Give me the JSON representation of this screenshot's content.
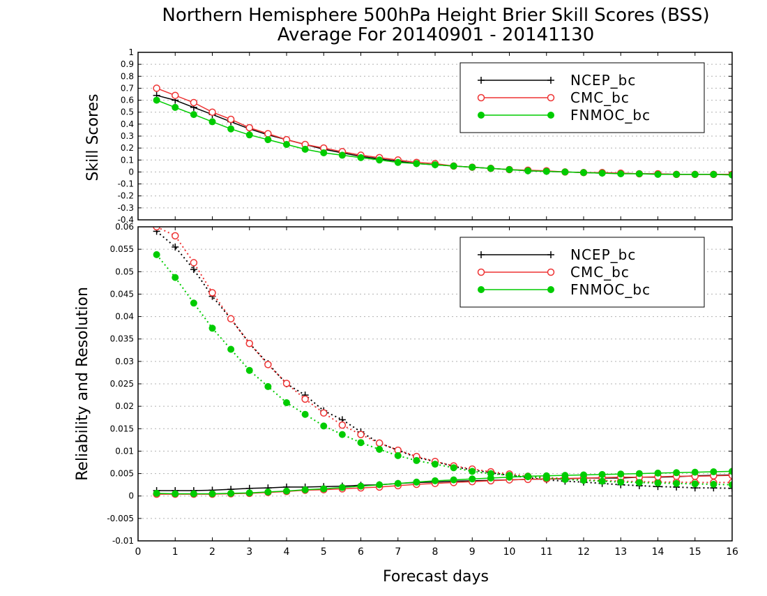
{
  "title_line1": "Northern Hemisphere 500hPa Height Brier Skill Scores (BSS)",
  "title_line2": "Average For 20140901 - 20141130",
  "chart_data": [
    {
      "type": "line",
      "ylabel": "Skill Scores",
      "ylim": [
        -0.4,
        1
      ],
      "xlim": [
        0,
        16
      ],
      "yticks": [
        "-0.4",
        "-0.3",
        "-0.2",
        "-0.1",
        "0",
        "0.1",
        "0.2",
        "0.3",
        "0.4",
        "0.5",
        "0.6",
        "0.7",
        "0.8",
        "0.9",
        "1"
      ],
      "grid": true,
      "legend_position": "top-right",
      "x": [
        0.5,
        1,
        1.5,
        2,
        2.5,
        3,
        3.5,
        4,
        4.5,
        5,
        5.5,
        6,
        6.5,
        7,
        7.5,
        8,
        8.5,
        9,
        9.5,
        10,
        10.5,
        11,
        11.5,
        12,
        12.5,
        13,
        13.5,
        14,
        14.5,
        15,
        15.5,
        16
      ],
      "series": [
        {
          "name": "NCEP_bc",
          "color": "#000000",
          "marker": "plus",
          "values": [
            0.64,
            0.6,
            0.54,
            0.48,
            0.42,
            0.36,
            0.31,
            0.27,
            0.23,
            0.19,
            0.16,
            0.13,
            0.11,
            0.09,
            0.07,
            0.06,
            0.05,
            0.04,
            0.03,
            0.02,
            0.01,
            0.005,
            0.0,
            -0.005,
            -0.01,
            -0.01,
            -0.015,
            -0.015,
            -0.02,
            -0.02,
            -0.02,
            -0.02
          ]
        },
        {
          "name": "CMC_bc",
          "color": "#ee3333",
          "marker": "open-circle",
          "values": [
            0.7,
            0.64,
            0.58,
            0.5,
            0.44,
            0.37,
            0.32,
            0.27,
            0.23,
            0.2,
            0.17,
            0.14,
            0.12,
            0.1,
            0.08,
            0.07,
            0.05,
            0.04,
            0.03,
            0.02,
            0.015,
            0.01,
            0.0,
            -0.005,
            -0.005,
            -0.01,
            -0.015,
            -0.015,
            -0.02,
            -0.02,
            -0.02,
            -0.02
          ]
        },
        {
          "name": "FNMOC_bc",
          "color": "#00cc00",
          "marker": "filled-circle",
          "values": [
            0.6,
            0.54,
            0.48,
            0.42,
            0.36,
            0.31,
            0.27,
            0.23,
            0.19,
            0.16,
            0.14,
            0.12,
            0.1,
            0.08,
            0.07,
            0.06,
            0.05,
            0.04,
            0.03,
            0.02,
            0.01,
            0.005,
            0.0,
            -0.005,
            -0.01,
            -0.015,
            -0.015,
            -0.02,
            -0.02,
            -0.02,
            -0.02,
            -0.025
          ]
        }
      ]
    },
    {
      "type": "line",
      "ylabel": "Reliability and Resolution",
      "xlabel": "Forecast days",
      "ylim": [
        -0.01,
        0.06
      ],
      "xlim": [
        0,
        16
      ],
      "yticks": [
        "-0.01",
        "-0.005",
        "0",
        "0.005",
        "0.01",
        "0.015",
        "0.02",
        "0.025",
        "0.03",
        "0.035",
        "0.04",
        "0.045",
        "0.05",
        "0.055",
        "0.06"
      ],
      "xticks": [
        "0",
        "1",
        "2",
        "3",
        "4",
        "5",
        "6",
        "7",
        "8",
        "9",
        "10",
        "11",
        "12",
        "13",
        "14",
        "15",
        "16"
      ],
      "grid": true,
      "legend_position": "top-right",
      "x": [
        0.5,
        1,
        1.5,
        2,
        2.5,
        3,
        3.5,
        4,
        4.5,
        5,
        5.5,
        6,
        6.5,
        7,
        7.5,
        8,
        8.5,
        9,
        9.5,
        10,
        10.5,
        11,
        11.5,
        12,
        12.5,
        13,
        13.5,
        14,
        14.5,
        15,
        15.5,
        16
      ],
      "series": [
        {
          "name": "NCEP_bc",
          "color": "#000000",
          "marker": "plus",
          "line": "dotted",
          "values": [
            0.059,
            0.0555,
            0.0505,
            0.0445,
            0.0395,
            0.034,
            0.0295,
            0.025,
            0.0225,
            0.019,
            0.017,
            0.0143,
            0.0118,
            0.0102,
            0.0086,
            0.0077,
            0.0066,
            0.0058,
            0.0052,
            0.0046,
            0.0041,
            0.0036,
            0.0033,
            0.0031,
            0.0028,
            0.0025,
            0.0023,
            0.0021,
            0.002,
            0.0018,
            0.0018,
            0.0017
          ]
        },
        {
          "name": "NCEP_bc",
          "color": "#000000",
          "marker": "plus",
          "line": "solid",
          "values": [
            0.0012,
            0.0012,
            0.0012,
            0.0013,
            0.0015,
            0.0017,
            0.0018,
            0.002,
            0.002,
            0.0021,
            0.0022,
            0.0024,
            0.0025,
            0.0028,
            0.003,
            0.0031,
            0.0033,
            0.0034,
            0.0035,
            0.0036,
            0.0037,
            0.0038,
            0.0038,
            0.004,
            0.004,
            0.004,
            0.0042,
            0.0042,
            0.0043,
            0.0045,
            0.0046,
            0.0047
          ]
        },
        {
          "name": "CMC_bc",
          "color": "#ee3333",
          "marker": "open-circle",
          "line": "dotted",
          "values": [
            0.06,
            0.058,
            0.052,
            0.0453,
            0.0395,
            0.034,
            0.0293,
            0.0251,
            0.0216,
            0.0185,
            0.0158,
            0.0137,
            0.0118,
            0.0102,
            0.0088,
            0.0077,
            0.0067,
            0.006,
            0.0054,
            0.0049,
            0.0044,
            0.0041,
            0.0039,
            0.0036,
            0.0035,
            0.0033,
            0.0032,
            0.0031,
            0.0031,
            0.003,
            0.003,
            0.003
          ]
        },
        {
          "name": "CMC_bc",
          "color": "#ee3333",
          "marker": "open-circle",
          "line": "solid",
          "values": [
            0.0004,
            0.0004,
            0.0004,
            0.0004,
            0.0005,
            0.0006,
            0.0008,
            0.001,
            0.0013,
            0.0014,
            0.0016,
            0.0018,
            0.002,
            0.0023,
            0.0026,
            0.0028,
            0.003,
            0.0032,
            0.0034,
            0.0036,
            0.0037,
            0.0038,
            0.0039,
            0.004,
            0.0041,
            0.0042,
            0.0042,
            0.0043,
            0.0044,
            0.0044,
            0.0045,
            0.0046
          ]
        },
        {
          "name": "FNMOC_bc",
          "color": "#00cc00",
          "marker": "filled-circle",
          "line": "dotted",
          "values": [
            0.0538,
            0.0487,
            0.043,
            0.0374,
            0.0327,
            0.028,
            0.0244,
            0.0208,
            0.0182,
            0.0156,
            0.0137,
            0.0119,
            0.0104,
            0.009,
            0.0079,
            0.0071,
            0.0063,
            0.0055,
            0.005,
            0.0046,
            0.0043,
            0.004,
            0.0037,
            0.0035,
            0.0033,
            0.0031,
            0.003,
            0.0029,
            0.0028,
            0.0027,
            0.0026,
            0.0025
          ]
        },
        {
          "name": "FNMOC_bc",
          "color": "#00cc00",
          "marker": "filled-circle",
          "line": "solid",
          "values": [
            0.0006,
            0.0005,
            0.0005,
            0.0005,
            0.0006,
            0.0007,
            0.0009,
            0.0011,
            0.0014,
            0.0016,
            0.0019,
            0.0022,
            0.0025,
            0.0028,
            0.0031,
            0.0034,
            0.0036,
            0.0038,
            0.004,
            0.0042,
            0.0044,
            0.0045,
            0.0046,
            0.0047,
            0.0048,
            0.0049,
            0.005,
            0.0051,
            0.0052,
            0.0053,
            0.0054,
            0.0055
          ]
        }
      ]
    }
  ]
}
